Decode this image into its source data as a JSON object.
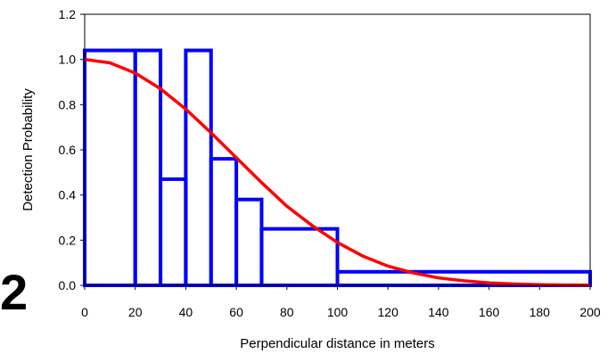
{
  "panel_label": "2",
  "chart_data": {
    "type": "histogram_with_curve",
    "xlabel": "Perpendicular distance in meters",
    "ylabel": "Detection Probability",
    "xlim": [
      0,
      200
    ],
    "ylim": [
      0,
      1.2
    ],
    "xticks": [
      0,
      20,
      40,
      60,
      80,
      100,
      120,
      140,
      160,
      180,
      200
    ],
    "yticks": [
      "0.0",
      "0.2",
      "0.4",
      "0.6",
      "0.8",
      "1.0",
      "1.2"
    ],
    "grid": false,
    "legend": "none",
    "histogram": {
      "color": "#0000ff",
      "bins": [
        {
          "x0": 0,
          "x1": 20,
          "value": 1.04
        },
        {
          "x0": 20,
          "x1": 30,
          "value": 1.04
        },
        {
          "x0": 30,
          "x1": 40,
          "value": 0.47
        },
        {
          "x0": 40,
          "x1": 50,
          "value": 1.04
        },
        {
          "x0": 50,
          "x1": 60,
          "value": 0.56
        },
        {
          "x0": 60,
          "x1": 70,
          "value": 0.38
        },
        {
          "x0": 70,
          "x1": 100,
          "value": 0.25
        },
        {
          "x0": 100,
          "x1": 200,
          "value": 0.06
        }
      ]
    },
    "curve": {
      "color": "#ff0000",
      "points": [
        [
          0,
          1.0
        ],
        [
          10,
          0.985
        ],
        [
          20,
          0.94
        ],
        [
          30,
          0.87
        ],
        [
          40,
          0.78
        ],
        [
          50,
          0.675
        ],
        [
          60,
          0.565
        ],
        [
          70,
          0.455
        ],
        [
          80,
          0.35
        ],
        [
          90,
          0.265
        ],
        [
          100,
          0.19
        ],
        [
          110,
          0.13
        ],
        [
          120,
          0.085
        ],
        [
          130,
          0.055
        ],
        [
          140,
          0.033
        ],
        [
          150,
          0.02
        ],
        [
          160,
          0.011
        ],
        [
          170,
          0.006
        ],
        [
          180,
          0.003
        ],
        [
          190,
          0.0015
        ],
        [
          200,
          0.0007
        ]
      ]
    }
  }
}
